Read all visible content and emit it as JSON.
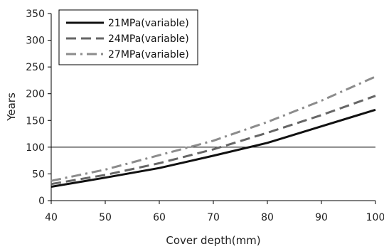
{
  "chart_data": {
    "type": "line",
    "xlabel": "Cover depth(mm)",
    "ylabel": "Years",
    "xlim": [
      40,
      100
    ],
    "ylim": [
      0,
      350
    ],
    "x_ticks": [
      40,
      50,
      60,
      70,
      80,
      90,
      100
    ],
    "y_ticks": [
      0,
      50,
      100,
      150,
      200,
      250,
      300,
      350
    ],
    "grid": false,
    "legend_position": "top-left",
    "reference_line": {
      "y": 100
    },
    "series": [
      {
        "name": "21MPa(variable)",
        "color": "#111111",
        "dash": "solid",
        "points": [
          [
            40,
            26
          ],
          [
            50,
            43
          ],
          [
            60,
            61
          ],
          [
            70,
            84
          ],
          [
            80,
            108
          ],
          [
            90,
            139
          ],
          [
            100,
            170
          ]
        ]
      },
      {
        "name": "24MPa(variable)",
        "color": "#666666",
        "dash": "dash",
        "points": [
          [
            40,
            31
          ],
          [
            50,
            48
          ],
          [
            60,
            70
          ],
          [
            70,
            96
          ],
          [
            80,
            127
          ],
          [
            90,
            160
          ],
          [
            100,
            196
          ]
        ]
      },
      {
        "name": "27MPa(variable)",
        "color": "#8c8c8c",
        "dash": "dashdot",
        "points": [
          [
            40,
            37
          ],
          [
            50,
            58
          ],
          [
            60,
            85
          ],
          [
            70,
            112
          ],
          [
            80,
            147
          ],
          [
            90,
            187
          ],
          [
            100,
            232
          ]
        ]
      }
    ]
  }
}
